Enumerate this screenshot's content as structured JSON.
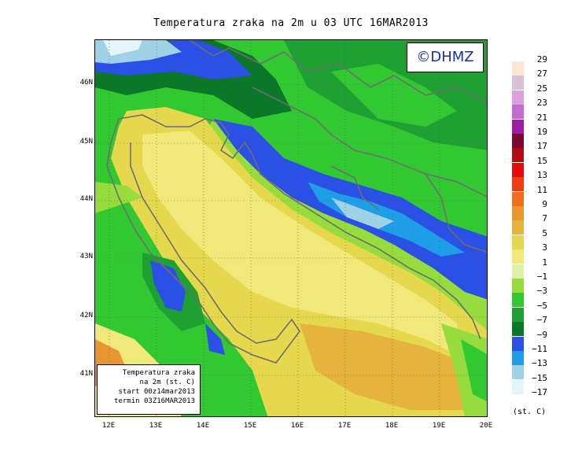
{
  "title": "Temperatura zraka na 2m u 03 UTC 16MAR2013",
  "logo_text": "©DHMZ",
  "info_box": {
    "line1": "Temperatura zraka",
    "line2": "na 2m (st. C)",
    "line3": "start 00z14mar2013",
    "line4": "termin 03Z16MAR2013"
  },
  "lat_labels": [
    "46N",
    "45N",
    "44N",
    "43N",
    "42N",
    "41N"
  ],
  "lon_labels": [
    "12E",
    "13E",
    "14E",
    "15E",
    "16E",
    "17E",
    "18E",
    "19E",
    "20E"
  ],
  "legend": {
    "unit": "(st. C)",
    "entries": [
      {
        "label": "29",
        "color": "#fbe6d4"
      },
      {
        "label": "27",
        "color": "#d6c2d6"
      },
      {
        "label": "25",
        "color": "#dca0e0"
      },
      {
        "label": "23",
        "color": "#c46ad2"
      },
      {
        "label": "21",
        "color": "#9a1ea0"
      },
      {
        "label": "19",
        "color": "#7a0a30"
      },
      {
        "label": "17",
        "color": "#b40a14"
      },
      {
        "label": "15",
        "color": "#e60a0a"
      },
      {
        "label": "13",
        "color": "#f23a14"
      },
      {
        "label": "11",
        "color": "#f06e1e"
      },
      {
        "label": "9",
        "color": "#ea9630"
      },
      {
        "label": "7",
        "color": "#e6b43c"
      },
      {
        "label": "5",
        "color": "#e6d84c"
      },
      {
        "label": "3",
        "color": "#f0e878"
      },
      {
        "label": "1",
        "color": "#dff0a8"
      },
      {
        "label": "−1",
        "color": "#96dc3c"
      },
      {
        "label": "−3",
        "color": "#32c832"
      },
      {
        "label": "−5",
        "color": "#1ea032"
      },
      {
        "label": "−7",
        "color": "#0a7828"
      },
      {
        "label": "−9",
        "color": "#2a50e6"
      },
      {
        "label": "−11",
        "color": "#1e9ee6"
      },
      {
        "label": "−13",
        "color": "#a0d2e6"
      },
      {
        "label": "−15",
        "color": "#e2f6fa"
      },
      {
        "label": "−17",
        "color": ""
      }
    ]
  },
  "colors": {
    "coast": "#6e6e6e",
    "grid": "#555555"
  }
}
